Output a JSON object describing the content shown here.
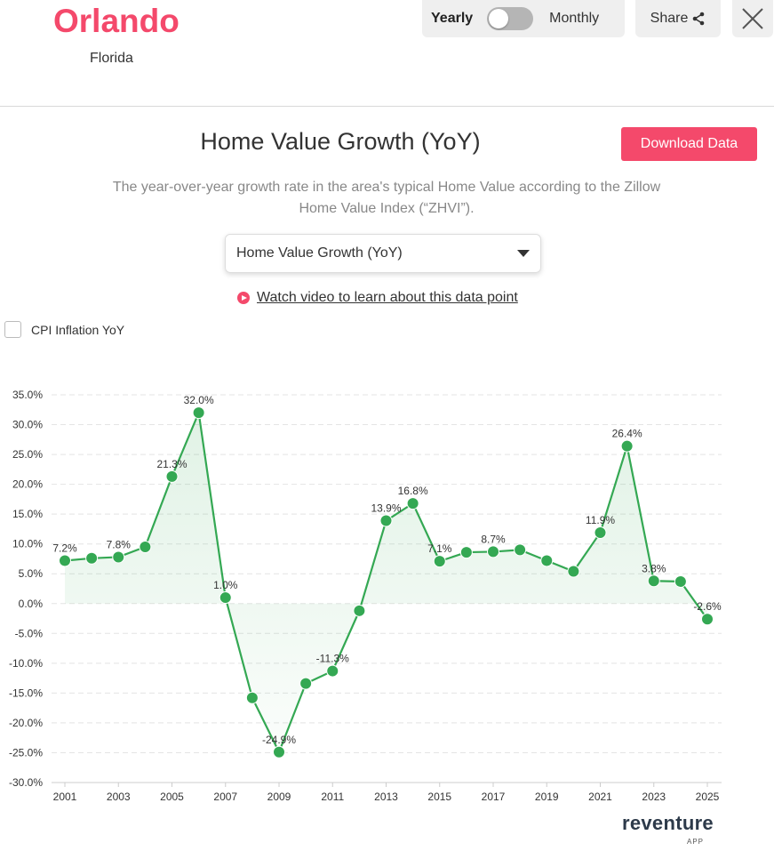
{
  "header": {
    "city": "Orlando",
    "state": "Florida",
    "toggle_left": "Yearly",
    "toggle_right": "Monthly",
    "toggle_state": "yearly",
    "share_label": "Share",
    "share_icon": "share-icon",
    "close_icon": "close-icon"
  },
  "main": {
    "title": "Home Value Growth (YoY)",
    "download_label": "Download Data",
    "description": "The year-over-year growth rate in the area's typical Home Value according to the Zillow Home Value Index (“ZHVI”).",
    "select_value": "Home Value Growth (YoY)",
    "video_link": "Watch video to learn about this data point",
    "cpi_label": "CPI Inflation YoY",
    "cpi_checked": false
  },
  "logo": {
    "name": "reventure",
    "sub": "APP"
  },
  "colors": {
    "accent": "#f4496b",
    "series": "#34a853"
  },
  "chart_data": {
    "type": "line",
    "title": "",
    "x": [
      2001,
      2002,
      2003,
      2004,
      2005,
      2006,
      2007,
      2008,
      2009,
      2010,
      2011,
      2012,
      2013,
      2014,
      2015,
      2016,
      2017,
      2018,
      2019,
      2020,
      2021,
      2022,
      2023,
      2024,
      2025
    ],
    "values": [
      7.2,
      7.6,
      7.8,
      9.5,
      21.3,
      32.0,
      1.0,
      -15.8,
      -24.9,
      -13.4,
      -11.3,
      -1.2,
      13.9,
      16.8,
      7.1,
      8.6,
      8.7,
      9.0,
      7.2,
      5.4,
      11.9,
      26.4,
      3.8,
      3.7,
      -2.6
    ],
    "data_labels": {
      "2001": "7.2%",
      "2003": "7.8%",
      "2005": "21.3%",
      "2006": "32.0%",
      "2007": "1.0%",
      "2009": "-24.9%",
      "2011": "-11.3%",
      "2013": "13.9%",
      "2014": "16.8%",
      "2015": "7.1%",
      "2017": "8.7%",
      "2021": "11.9%",
      "2022": "26.4%",
      "2023": "3.8%",
      "2025": "-2.6%"
    },
    "ylim": [
      -30,
      35
    ],
    "yticks": [
      "35.0%",
      "30.0%",
      "25.0%",
      "20.0%",
      "15.0%",
      "10.0%",
      "5.0%",
      "0.0%",
      "-5.0%",
      "-10.0%",
      "-15.0%",
      "-20.0%",
      "-25.0%",
      "-30.0%"
    ],
    "xticks": [
      "2001",
      "2003",
      "2005",
      "2007",
      "2009",
      "2011",
      "2013",
      "2015",
      "2017",
      "2019",
      "2021",
      "2023",
      "2025"
    ],
    "grid": true,
    "area_fill": true,
    "legend": "none"
  }
}
